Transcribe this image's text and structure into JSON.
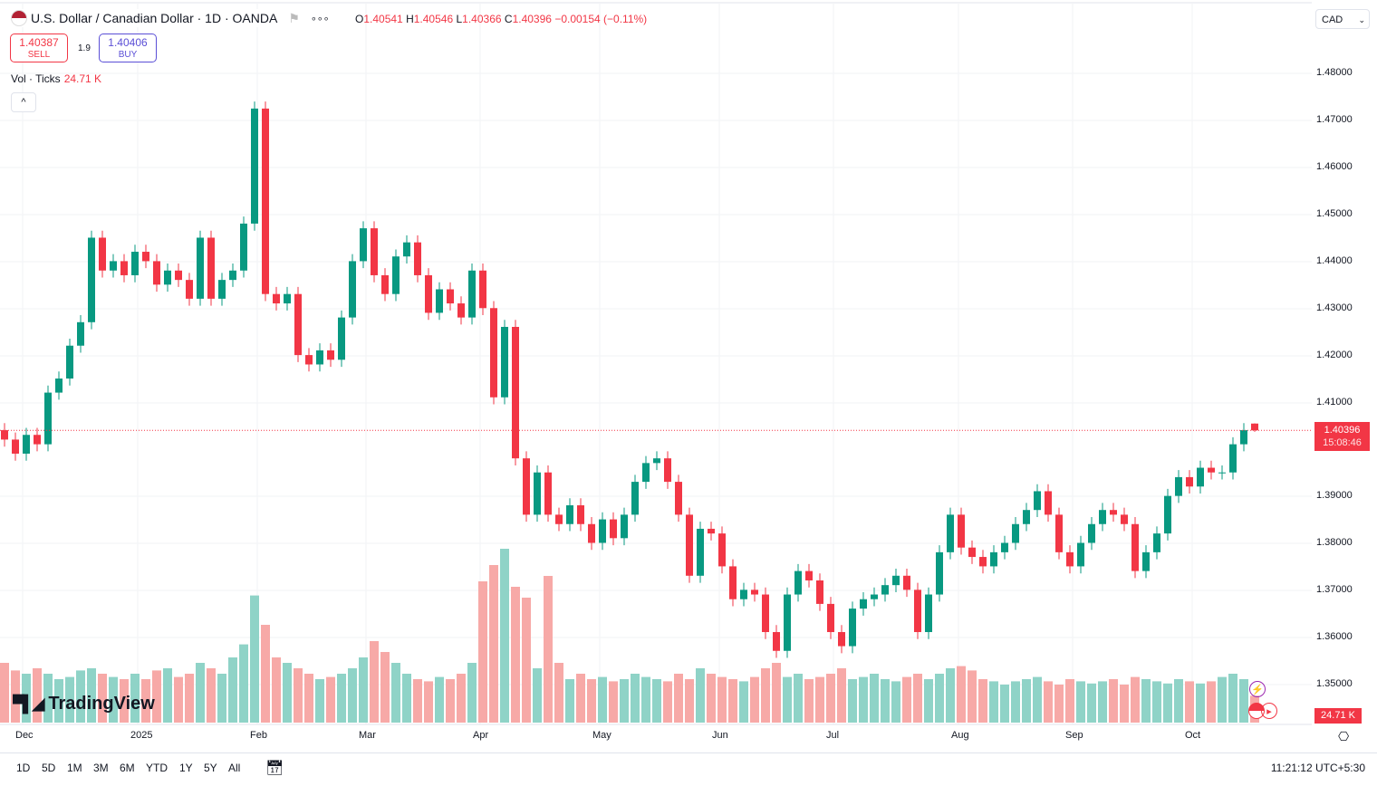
{
  "header": {
    "title": "U.S. Dollar / Canadian Dollar · 1D · OANDA",
    "ohlc": {
      "o_label": "O",
      "o": "1.40541",
      "h_label": "H",
      "h": "1.40546",
      "l_label": "L",
      "l": "1.40366",
      "c_label": "C",
      "c": "1.40396",
      "change": "−0.00154 (−0.11%)"
    },
    "more": "∘∘∘"
  },
  "trade": {
    "sell_price": "1.40387",
    "sell_label": "SELL",
    "spread": "1.9",
    "buy_price": "1.40406",
    "buy_label": "BUY"
  },
  "volume_legend": {
    "label": "Vol · Ticks",
    "value": "24.71 K"
  },
  "currency": "CAD",
  "price_axis": [
    "1.48000",
    "1.47000",
    "1.46000",
    "1.45000",
    "1.44000",
    "1.43000",
    "1.42000",
    "1.41000",
    "1.39000",
    "1.38000",
    "1.37000",
    "1.36000",
    "1.35000"
  ],
  "last_price": {
    "value": "1.40396",
    "countdown": "15:08:46"
  },
  "last_volume": "24.71 K",
  "time_axis": [
    "Dec",
    "2025",
    "Feb",
    "Mar",
    "Apr",
    "May",
    "Jun",
    "Jul",
    "Aug",
    "Sep",
    "Oct"
  ],
  "timeframes": [
    "1D",
    "5D",
    "1M",
    "3M",
    "6M",
    "YTD",
    "1Y",
    "5Y",
    "All"
  ],
  "clock": "11:21:12 UTC+5:30",
  "logo": "TradingView",
  "colors": {
    "up": "#089981",
    "down": "#f23645",
    "vol_up": "#8fd3c7",
    "vol_down": "#f7a9a7"
  },
  "chart_data": {
    "type": "candlestick",
    "symbol": "USDCAD",
    "interval": "1D",
    "ylim": [
      1.35,
      1.48
    ],
    "last_candle": {
      "o": 1.40541,
      "h": 1.40546,
      "l": 1.40366,
      "c": 1.40396
    },
    "close": [
      1.402,
      1.399,
      1.403,
      1.401,
      1.412,
      1.415,
      1.422,
      1.427,
      1.445,
      1.438,
      1.44,
      1.437,
      1.442,
      1.44,
      1.435,
      1.438,
      1.436,
      1.432,
      1.445,
      1.432,
      1.436,
      1.438,
      1.448,
      1.4725,
      1.433,
      1.431,
      1.433,
      1.42,
      1.418,
      1.421,
      1.419,
      1.428,
      1.44,
      1.447,
      1.437,
      1.433,
      1.441,
      1.444,
      1.437,
      1.429,
      1.434,
      1.431,
      1.428,
      1.438,
      1.43,
      1.411,
      1.426,
      1.398,
      1.386,
      1.395,
      1.386,
      1.384,
      1.388,
      1.384,
      1.38,
      1.385,
      1.381,
      1.386,
      1.393,
      1.397,
      1.398,
      1.393,
      1.386,
      1.373,
      1.383,
      1.382,
      1.375,
      1.368,
      1.37,
      1.369,
      1.361,
      1.357,
      1.369,
      1.374,
      1.372,
      1.367,
      1.361,
      1.358,
      1.366,
      1.368,
      1.369,
      1.371,
      1.373,
      1.37,
      1.361,
      1.369,
      1.378,
      1.386,
      1.379,
      1.377,
      1.375,
      1.378,
      1.38,
      1.384,
      1.387,
      1.391,
      1.386,
      1.378,
      1.375,
      1.38,
      1.384,
      1.387,
      1.386,
      1.384,
      1.374,
      1.378,
      1.382,
      1.39,
      1.394,
      1.392,
      1.396,
      1.395,
      1.395,
      1.401,
      1.404,
      1.40396
    ],
    "volume_k": [
      55,
      48,
      45,
      50,
      45,
      40,
      42,
      48,
      50,
      45,
      42,
      40,
      45,
      40,
      48,
      50,
      42,
      45,
      55,
      50,
      45,
      60,
      72,
      117,
      90,
      60,
      55,
      50,
      45,
      40,
      42,
      45,
      50,
      60,
      75,
      65,
      55,
      45,
      40,
      38,
      42,
      40,
      45,
      55,
      130,
      145,
      160,
      125,
      115,
      50,
      135,
      55,
      40,
      45,
      40,
      42,
      38,
      40,
      45,
      42,
      40,
      38,
      45,
      40,
      50,
      45,
      42,
      40,
      38,
      42,
      50,
      55,
      42,
      45,
      40,
      42,
      45,
      50,
      40,
      42,
      45,
      40,
      38,
      42,
      45,
      40,
      45,
      50,
      52,
      48,
      40,
      38,
      35,
      38,
      40,
      42,
      38,
      35,
      40,
      38,
      36,
      38,
      40,
      35,
      42,
      40,
      38,
      36,
      40,
      38,
      36,
      38,
      42,
      45,
      40,
      24.71
    ]
  }
}
